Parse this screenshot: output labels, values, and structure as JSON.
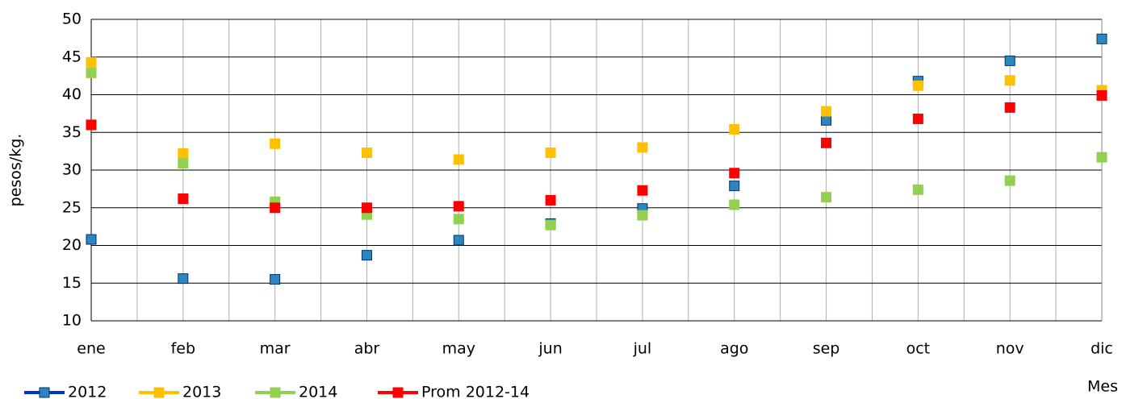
{
  "chart_data": {
    "type": "line",
    "y_label": "pesos/kg.",
    "x_label": "Mes",
    "categories": [
      "ene",
      "feb",
      "mar",
      "abr",
      "may",
      "jun",
      "jul",
      "ago",
      "sep",
      "oct",
      "nov",
      "dic"
    ],
    "series": [
      {
        "name": "2012",
        "color": "#0033cc",
        "marker_color": "#2e86c1",
        "values": [
          20.8,
          15.6,
          15.5,
          18.7,
          20.7,
          22.9,
          24.9,
          27.9,
          36.6,
          41.8,
          44.5,
          47.4
        ]
      },
      {
        "name": "2013",
        "color": "#ffc000",
        "marker_color": "#ffc000",
        "values": [
          44.3,
          32.2,
          33.5,
          32.3,
          31.4,
          32.3,
          33.0,
          35.4,
          37.8,
          41.2,
          41.9,
          40.6
        ]
      },
      {
        "name": "2014",
        "color": "#92d050",
        "marker_color": "#92d050",
        "values": [
          42.9,
          30.9,
          25.8,
          24.1,
          23.5,
          22.7,
          24.0,
          25.4,
          26.4,
          27.4,
          28.6,
          31.7
        ]
      },
      {
        "name": "Prom 2012-14",
        "color": "#ff0000",
        "marker_color": "#ff0000",
        "values": [
          36.0,
          26.2,
          25.0,
          25.0,
          25.2,
          26.0,
          27.3,
          29.6,
          33.6,
          36.8,
          38.3,
          39.9
        ]
      }
    ],
    "ylim": [
      10,
      50
    ],
    "yticks": [
      10,
      15,
      20,
      25,
      30,
      35,
      40,
      45,
      50
    ],
    "grid": true
  }
}
